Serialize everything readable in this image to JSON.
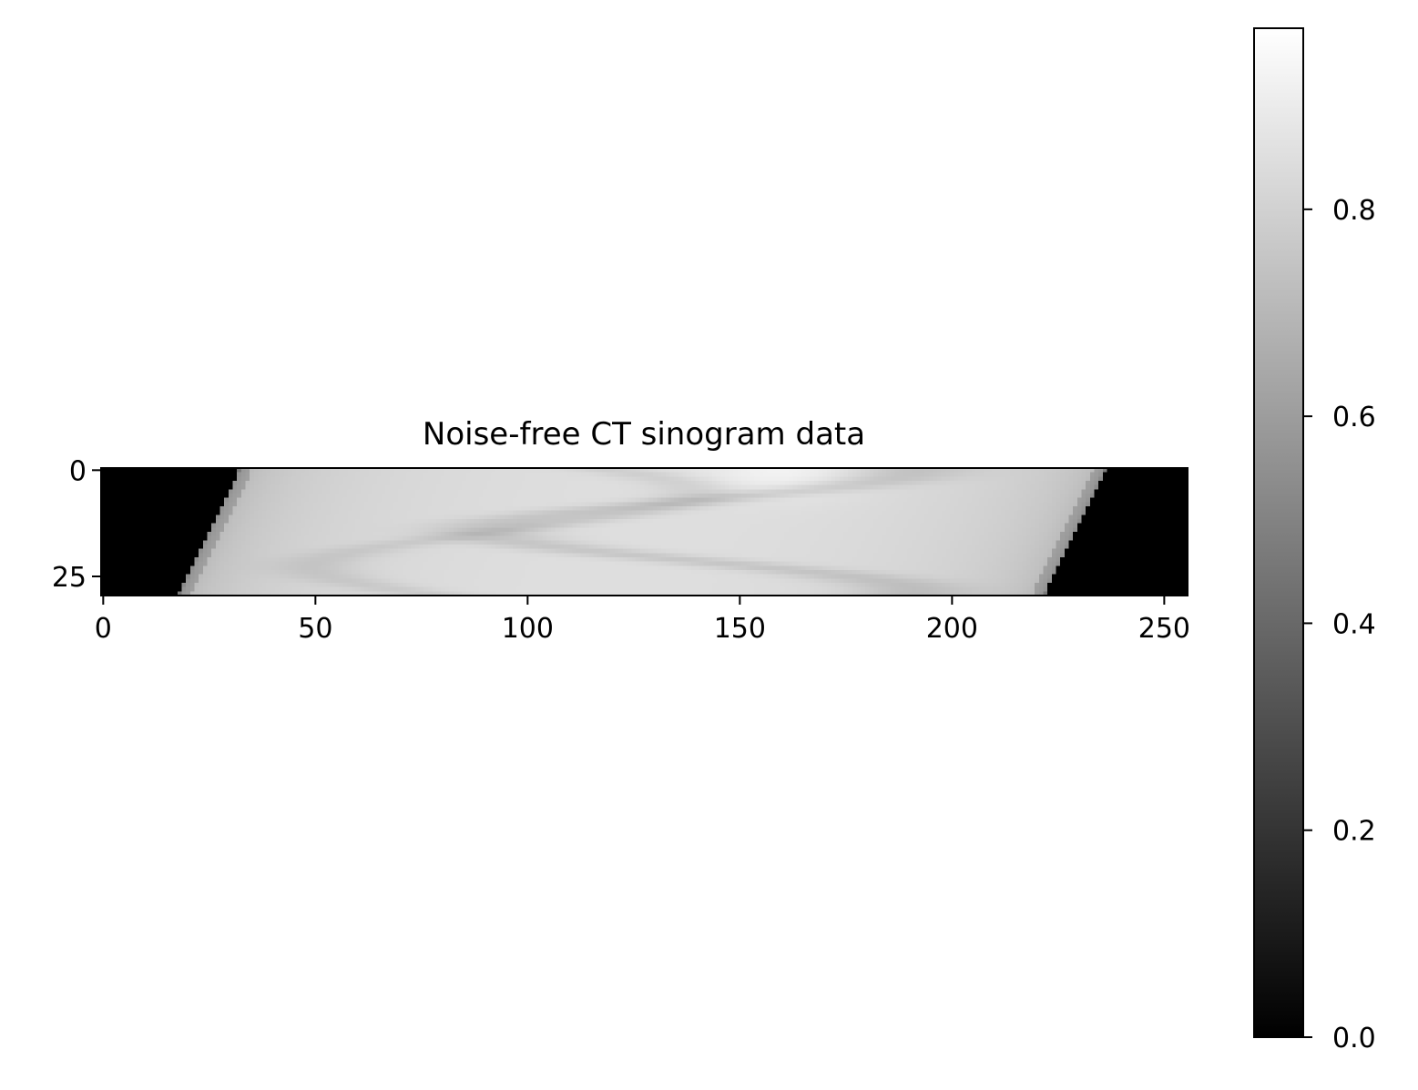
{
  "chart_data": {
    "type": "heatmap",
    "title": "Noise-free CT sinogram data",
    "xlabel": "",
    "ylabel": "",
    "colormap": "gray",
    "image_shape": {
      "rows": 30,
      "cols": 256
    },
    "xlim": [
      -0.5,
      255.5
    ],
    "ylim": [
      29.5,
      -0.5
    ],
    "x_ticks": [
      0,
      50,
      100,
      150,
      200,
      250
    ],
    "x_tick_labels": [
      "0",
      "50",
      "100",
      "150",
      "200",
      "250"
    ],
    "y_ticks": [
      0,
      25
    ],
    "y_tick_labels": [
      "0",
      "25"
    ],
    "support": {
      "left_edge": {
        "row_0": 32,
        "row_29": 18
      },
      "right_edge": {
        "row_0": 236,
        "row_29": 222
      }
    },
    "colorbar": {
      "range": [
        0.0,
        0.975
      ],
      "ticks": [
        0.0,
        0.2,
        0.4,
        0.6,
        0.8
      ],
      "tick_labels": [
        "0.0",
        "0.2",
        "0.4",
        "0.6",
        "0.8"
      ]
    },
    "grid": false,
    "legend": "none"
  }
}
